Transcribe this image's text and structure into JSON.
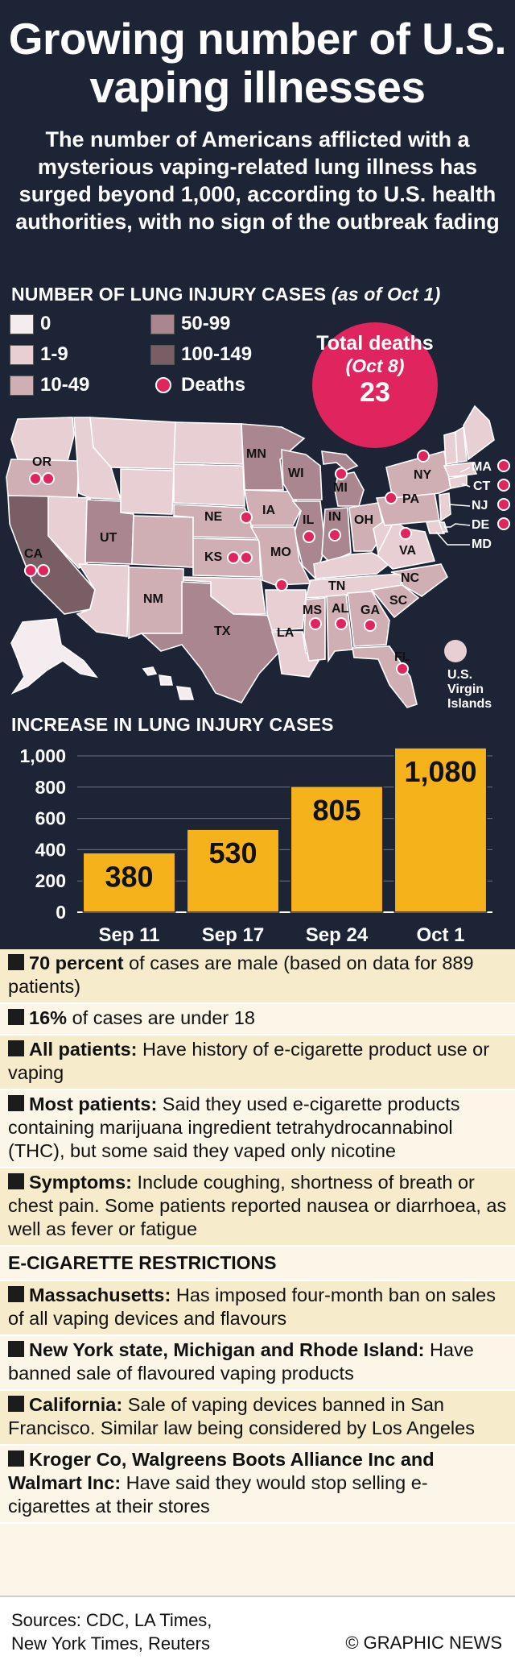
{
  "headline": "Growing number of U.S. vaping illnesses",
  "subtitle": "The number of Americans afflicted with a mysterious vaping-related lung illness has surged beyond 1,000, according to U.S. health authorities, with no sign of the outbreak fading",
  "map_section": {
    "title": "Number of Lung Injury Cases",
    "title_note": "(as of Oct 1)",
    "legend": [
      {
        "label": "0",
        "color": "#f4ecee"
      },
      {
        "label": "1-9",
        "color": "#e7cfd4"
      },
      {
        "label": "10-49",
        "color": "#cfaeb4"
      },
      {
        "label": "50-99",
        "color": "#a98690"
      },
      {
        "label": "100-149",
        "color": "#7a5e66"
      },
      {
        "label": "Deaths",
        "color": "#e0245e"
      }
    ],
    "badge": {
      "line1": "Total deaths",
      "line2": "(Oct 8)",
      "value": "23"
    },
    "state_labels": [
      "OR",
      "CA",
      "UT",
      "NM",
      "TX",
      "MN",
      "IA",
      "WI",
      "MI",
      "NE",
      "KS",
      "MO",
      "IL",
      "IN",
      "OH",
      "PA",
      "NY",
      "VA",
      "NC",
      "SC",
      "TN",
      "GA",
      "AL",
      "MS",
      "LA",
      "FL",
      "MA",
      "CT",
      "NJ",
      "DE",
      "MD"
    ],
    "territory_label": "U.S. Virgin Islands"
  },
  "chart_data": {
    "type": "bar",
    "title": "Increase in Lung Injury Cases",
    "categories": [
      "Sep 11",
      "Sep 17",
      "Sep 24",
      "Oct 1"
    ],
    "values": [
      380,
      530,
      805,
      1080
    ],
    "value_labels": [
      "380",
      "530",
      "805",
      "1,080"
    ],
    "ylim": [
      0,
      1000
    ],
    "yticks": [
      "0",
      "200",
      "400",
      "600",
      "800",
      "1,000"
    ],
    "bar_color": "#f5b21a",
    "grid": true
  },
  "facts": [
    {
      "bold": "70 percent",
      "text": " of cases are male (based on data for 889 patients)"
    },
    {
      "bold": "16%",
      "text": " of cases are under 18"
    },
    {
      "bold": "All patients:",
      "text": " Have history of e-cigarette product use or vaping"
    },
    {
      "bold": "Most patients:",
      "text": " Said they used e-cigarette products containing marijuana ingredient tetrahydrocannabinol (THC), but some said they vaped only nicotine"
    },
    {
      "bold": "Symptoms:",
      "text": " Include coughing, shortness of breath or chest pain. Some patients reported nausea or diarrhoea, as well as fever or fatigue"
    }
  ],
  "restrictions_title": "E-Cigarette Restrictions",
  "restrictions": [
    {
      "bold": "Massachusetts:",
      "text": " Has imposed four-month ban on sales of all vaping devices and flavours"
    },
    {
      "bold": "New York state, Michigan and Rhode Island:",
      "text": " Have banned sale of flavoured vaping products"
    },
    {
      "bold": "California:",
      "text": " Sale of vaping devices banned in San Francisco. Similar law being considered by Los Angeles"
    },
    {
      "bold": "Kroger Co, Walgreens Boots Alliance Inc and Walmart Inc:",
      "text": " Have said they would stop selling e-cigarettes at their stores"
    }
  ],
  "footer": {
    "sources": "Sources: CDC, LA Times,\nNew York Times, Reuters",
    "credit": "© GRAPHIC NEWS"
  }
}
